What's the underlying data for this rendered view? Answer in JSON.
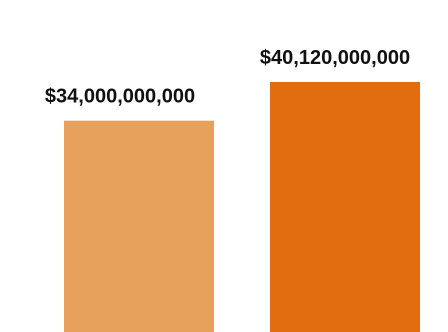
{
  "chart_data": {
    "type": "bar",
    "categories": [
      "",
      ""
    ],
    "values": [
      34000000000,
      40120000000
    ],
    "data_labels": [
      "$34,000,000,000",
      "$40,120,000,000"
    ],
    "colors": [
      "#E8A15C",
      "#E26D10"
    ],
    "title": "",
    "xlabel": "",
    "ylabel": "",
    "grid": false,
    "legend": "none"
  }
}
